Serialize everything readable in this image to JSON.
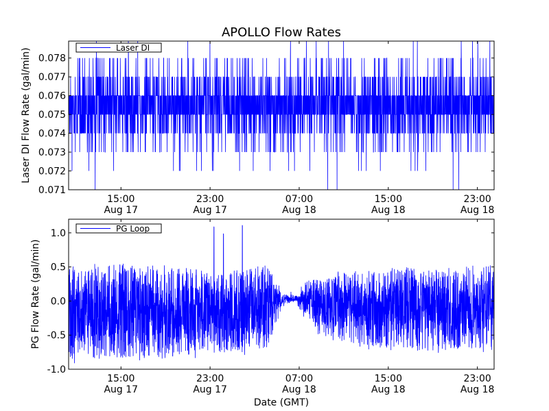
{
  "chart_data": [
    {
      "type": "line",
      "title": "APOLLO Flow Rates",
      "xlabel": "",
      "ylabel": "Laser DI Flow Rate (gal/min)",
      "ylim": [
        0.071,
        0.0789
      ],
      "yticks": [
        "0.071",
        "0.072",
        "0.073",
        "0.074",
        "0.075",
        "0.076",
        "0.077",
        "0.078"
      ],
      "ytick_values": [
        0.071,
        0.072,
        0.073,
        0.074,
        0.075,
        0.076,
        0.077,
        0.078
      ],
      "xlim_hours": [
        10.3,
        48.5
      ],
      "xticks": [
        {
          "time": "15:00",
          "date": "Aug 17",
          "hour": 15
        },
        {
          "time": "23:00",
          "date": "Aug 17",
          "hour": 23
        },
        {
          "time": "07:00",
          "date": "Aug 18",
          "hour": 31
        },
        {
          "time": "15:00",
          "date": "Aug 18",
          "hour": 39
        },
        {
          "time": "23:00",
          "date": "Aug 18",
          "hour": 47
        }
      ],
      "legend": {
        "position": "upper-left",
        "entries": [
          "Laser DI"
        ]
      },
      "series": [
        {
          "name": "Laser DI",
          "color": "#0000ff",
          "description": "dense quantized readings oscillating mainly between 0.075 and 0.076",
          "levels": [
            0.071,
            0.072,
            0.073,
            0.074,
            0.075,
            0.076,
            0.077,
            0.078,
            0.079
          ],
          "level_weights": [
            0.002,
            0.008,
            0.04,
            0.12,
            0.33,
            0.33,
            0.12,
            0.045,
            0.005
          ],
          "x_hours_range": [
            10.3,
            48.5
          ],
          "samples": 3000,
          "seed": 17
        }
      ]
    },
    {
      "type": "line",
      "title": "",
      "xlabel": "Date (GMT)",
      "ylabel": "PG Flow Rate (gal/min)",
      "ylim": [
        -1.0,
        1.2
      ],
      "yticks": [
        "-1.0",
        "-0.5",
        "0.0",
        "0.5",
        "1.0"
      ],
      "ytick_values": [
        -1.0,
        -0.5,
        0.0,
        0.5,
        1.0
      ],
      "xlim_hours": [
        10.3,
        48.5
      ],
      "xticks": [
        {
          "time": "15:00",
          "date": "Aug 17",
          "hour": 15
        },
        {
          "time": "23:00",
          "date": "Aug 17",
          "hour": 23
        },
        {
          "time": "07:00",
          "date": "Aug 18",
          "hour": 31
        },
        {
          "time": "15:00",
          "date": "Aug 18",
          "hour": 39
        },
        {
          "time": "23:00",
          "date": "Aug 18",
          "hour": 47
        }
      ],
      "legend": {
        "position": "upper-left",
        "entries": [
          "PG Loop"
        ]
      },
      "series": [
        {
          "name": "PG Loop",
          "color": "#0000ff",
          "description": "noisy oscillation around -0.15, calm near 0.05 around 05:00-06:30 Aug 18, spikes to ~1.1 near 23:00-02:00",
          "envelope_hours": [
            10.3,
            13,
            18,
            22,
            26,
            28.2,
            28.8,
            29.5,
            30.8,
            31.5,
            33,
            38,
            43,
            48.5
          ],
          "envelope_upper": [
            0.4,
            0.45,
            0.4,
            0.35,
            0.35,
            0.45,
            0.2,
            0.1,
            0.08,
            0.15,
            0.3,
            0.35,
            0.4,
            0.4
          ],
          "envelope_lower": [
            -0.8,
            -0.75,
            -0.75,
            -0.7,
            -0.65,
            -0.6,
            -0.35,
            -0.05,
            0.0,
            -0.2,
            -0.45,
            -0.6,
            -0.65,
            -0.6
          ],
          "spikes": [
            {
              "hour": 23.35,
              "value": 1.1
            },
            {
              "hour": 24.2,
              "value": 1.0
            },
            {
              "hour": 25.9,
              "value": 1.13
            }
          ],
          "samples": 3000,
          "seed": 42
        }
      ]
    }
  ]
}
